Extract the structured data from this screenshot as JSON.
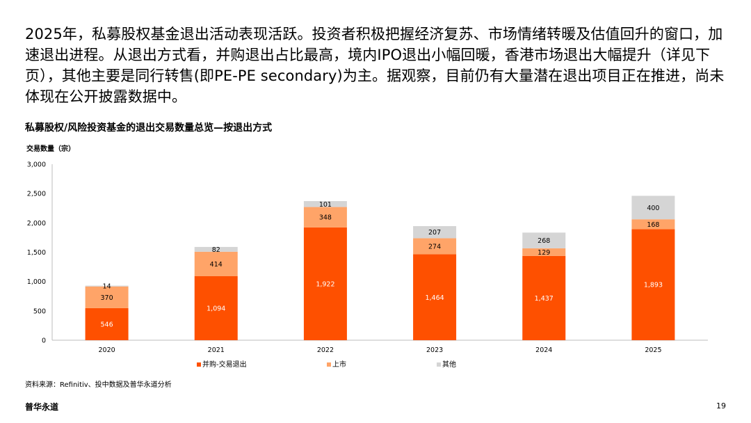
{
  "intro_text": "2025年，私募股权基金退出活动表现活跃。投资者积极把握经济复苏、市场情绪转暖及估值回升的窗口，加速退出进程。从退出方式看，并购退出占比最高，境内IPO退出小幅回暖，香港市场退出大幅提升（详见下页），其他主要是同行转售(即PE-PE secondary)为主。据观察，目前仍有大量潜在退出项目正在推进，尚未体现在公开披露数据中。",
  "chart_title": "私募股权/风险投资基金的退出交易数量总览—按退出方式",
  "chart_data": {
    "type": "bar",
    "stacked": true,
    "categories": [
      "2020",
      "2021",
      "2022",
      "2023",
      "2024",
      "2025"
    ],
    "series": [
      {
        "name": "并购-交易退出",
        "color": "#FE5000",
        "values": [
          546,
          1094,
          1922,
          1464,
          1437,
          1893
        ]
      },
      {
        "name": "上市",
        "color": "#FFA468",
        "values": [
          370,
          414,
          348,
          274,
          129,
          168
        ]
      },
      {
        "name": "其他",
        "color": "#D5D5D5",
        "values": [
          14,
          82,
          101,
          207,
          268,
          400
        ]
      }
    ],
    "value_labels": [
      [
        "546",
        "1,094",
        "1,922",
        "1,464",
        "1,437",
        "1,893"
      ],
      [
        "370",
        "414",
        "348",
        "274",
        "129",
        "168"
      ],
      [
        "14",
        "82",
        "101",
        "207",
        "268",
        "400"
      ]
    ],
    "ylabel": "交易数量（宗）",
    "ylim": [
      0,
      3000
    ],
    "yticks": [
      0,
      500,
      1000,
      1500,
      2000,
      2500,
      3000
    ],
    "ytick_labels": [
      "0",
      "500",
      "1,000",
      "1,500",
      "2,000",
      "2,500",
      "3,000"
    ],
    "grid": false,
    "legend_position": "bottom"
  },
  "source_text": "资料来源：Refinitiv、投中数据及普华永道分析",
  "footer_brand": "普华永道",
  "page_number": "19"
}
